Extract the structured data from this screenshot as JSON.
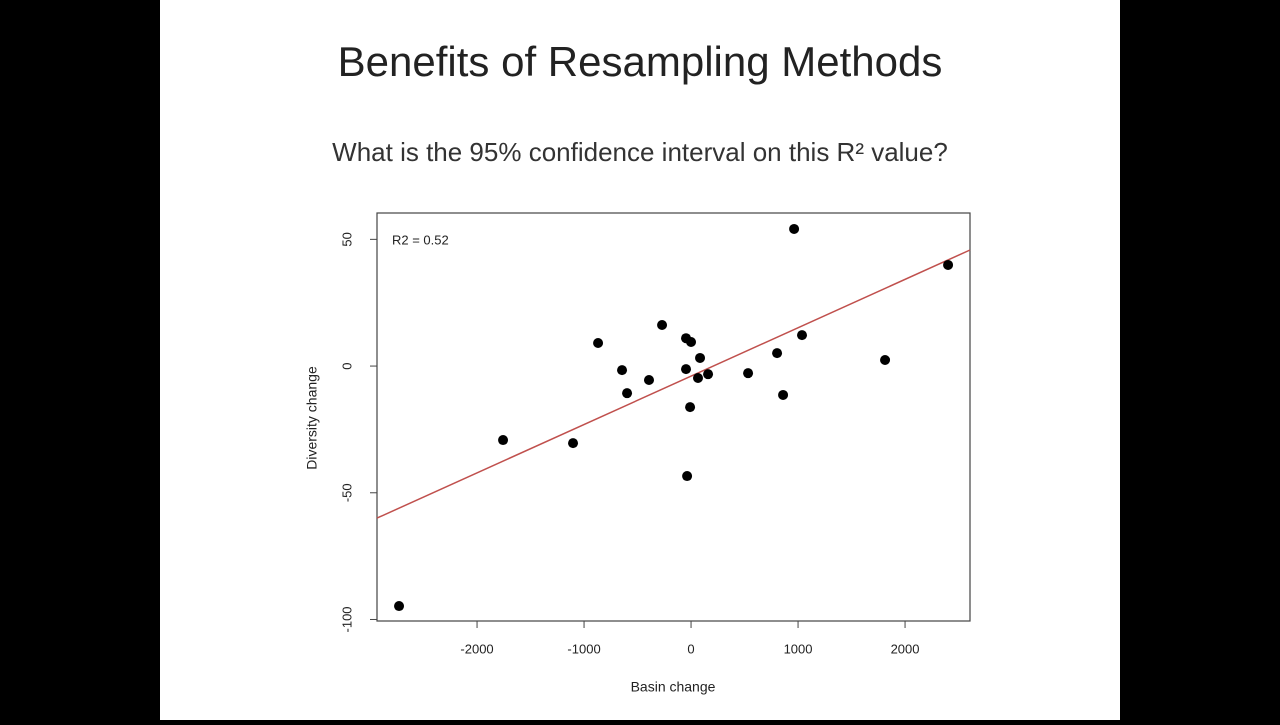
{
  "chart_data": {
    "type": "scatter",
    "title": "Benefits of Resampling Methods",
    "subtitle": "What is the 95% confidence interval on this R² value?",
    "annotation": "R2 = 0.52",
    "x_label": "Basin change",
    "y_label": "Diversity change",
    "x": [
      -2729,
      -1757,
      -1103,
      -869,
      -645,
      -598,
      -393,
      -271,
      -47,
      0,
      -47,
      -37,
      -9,
      65,
      84,
      159,
      533,
      804,
      860,
      963,
      1037,
      1813,
      2402
    ],
    "y": [
      -94.7,
      -29.2,
      -30.4,
      9.1,
      -1.6,
      -10.7,
      -5.5,
      16.2,
      11.0,
      9.5,
      -1.2,
      -43.4,
      -16.2,
      -4.7,
      3.2,
      -3.2,
      -2.8,
      5.1,
      -11.4,
      54.1,
      12.2,
      2.4,
      39.9
    ],
    "color": "#000000",
    "fit_line": {
      "x": [
        -2935,
        2607
      ],
      "y": [
        -60,
        45.8
      ],
      "color": "#c0504d"
    },
    "xlim": [
      -2935,
      2607
    ],
    "ylim": [
      -100.6,
      60.4
    ],
    "xticks": [
      -2000,
      -1000,
      0,
      1000,
      2000
    ],
    "yticks": [
      -100,
      -50,
      0,
      50
    ]
  }
}
